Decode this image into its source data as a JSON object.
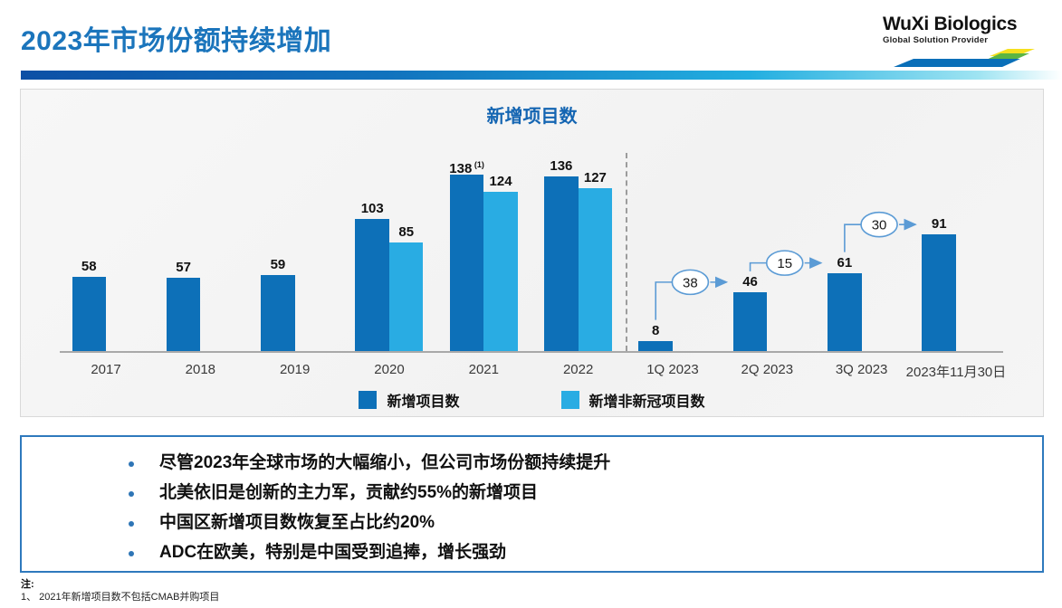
{
  "header": {
    "title": "2023年市场份额持续增加"
  },
  "logo": {
    "name": "WuXi Biologics",
    "tagline": "Global Solution Provider",
    "colors": {
      "yellow": "#f5e01e",
      "green": "#5bb543",
      "blue": "#0a6fb8"
    }
  },
  "chart_data": {
    "type": "bar",
    "title": "新增项目数",
    "categories": [
      "2017",
      "2018",
      "2019",
      "2020",
      "2021",
      "2022",
      "1Q 2023",
      "2Q 2023",
      "3Q 2023",
      "2023年11月30日"
    ],
    "series": [
      {
        "name": "新增项目数",
        "color": "#0d70b8",
        "values": [
          58,
          57,
          59,
          103,
          138,
          136,
          8,
          46,
          61,
          91
        ]
      },
      {
        "name": "新增非新冠项目数",
        "color": "#29ace3",
        "values": [
          null,
          null,
          null,
          85,
          124,
          127,
          null,
          null,
          null,
          null
        ]
      }
    ],
    "superscripts": [
      {
        "category_index": 4,
        "series_index": 0,
        "text": "(1)"
      }
    ],
    "annotations": [
      {
        "from_index": 6,
        "to_index": 7,
        "value": 38
      },
      {
        "from_index": 7,
        "to_index": 8,
        "value": 15
      },
      {
        "from_index": 8,
        "to_index": 9,
        "value": 30
      }
    ],
    "separator_after_index": 5,
    "ylim": [
      0,
      170
    ],
    "grid": false,
    "legend_position": "bottom",
    "annotation_color": "#5b9bd5"
  },
  "bullets": {
    "items": [
      "尽管2023年全球市场的大幅缩小，但公司市场份额持续提升",
      "北美依旧是创新的主力军，贡献约55%的新增项目",
      "中国区新增项目数恢复至占比约20%",
      "ADC在欧美，特别是中国受到追捧，增长强劲"
    ]
  },
  "notes": {
    "label": "注:",
    "items": [
      "1、 2021年新增项目数不包括CMAB并购项目"
    ]
  }
}
